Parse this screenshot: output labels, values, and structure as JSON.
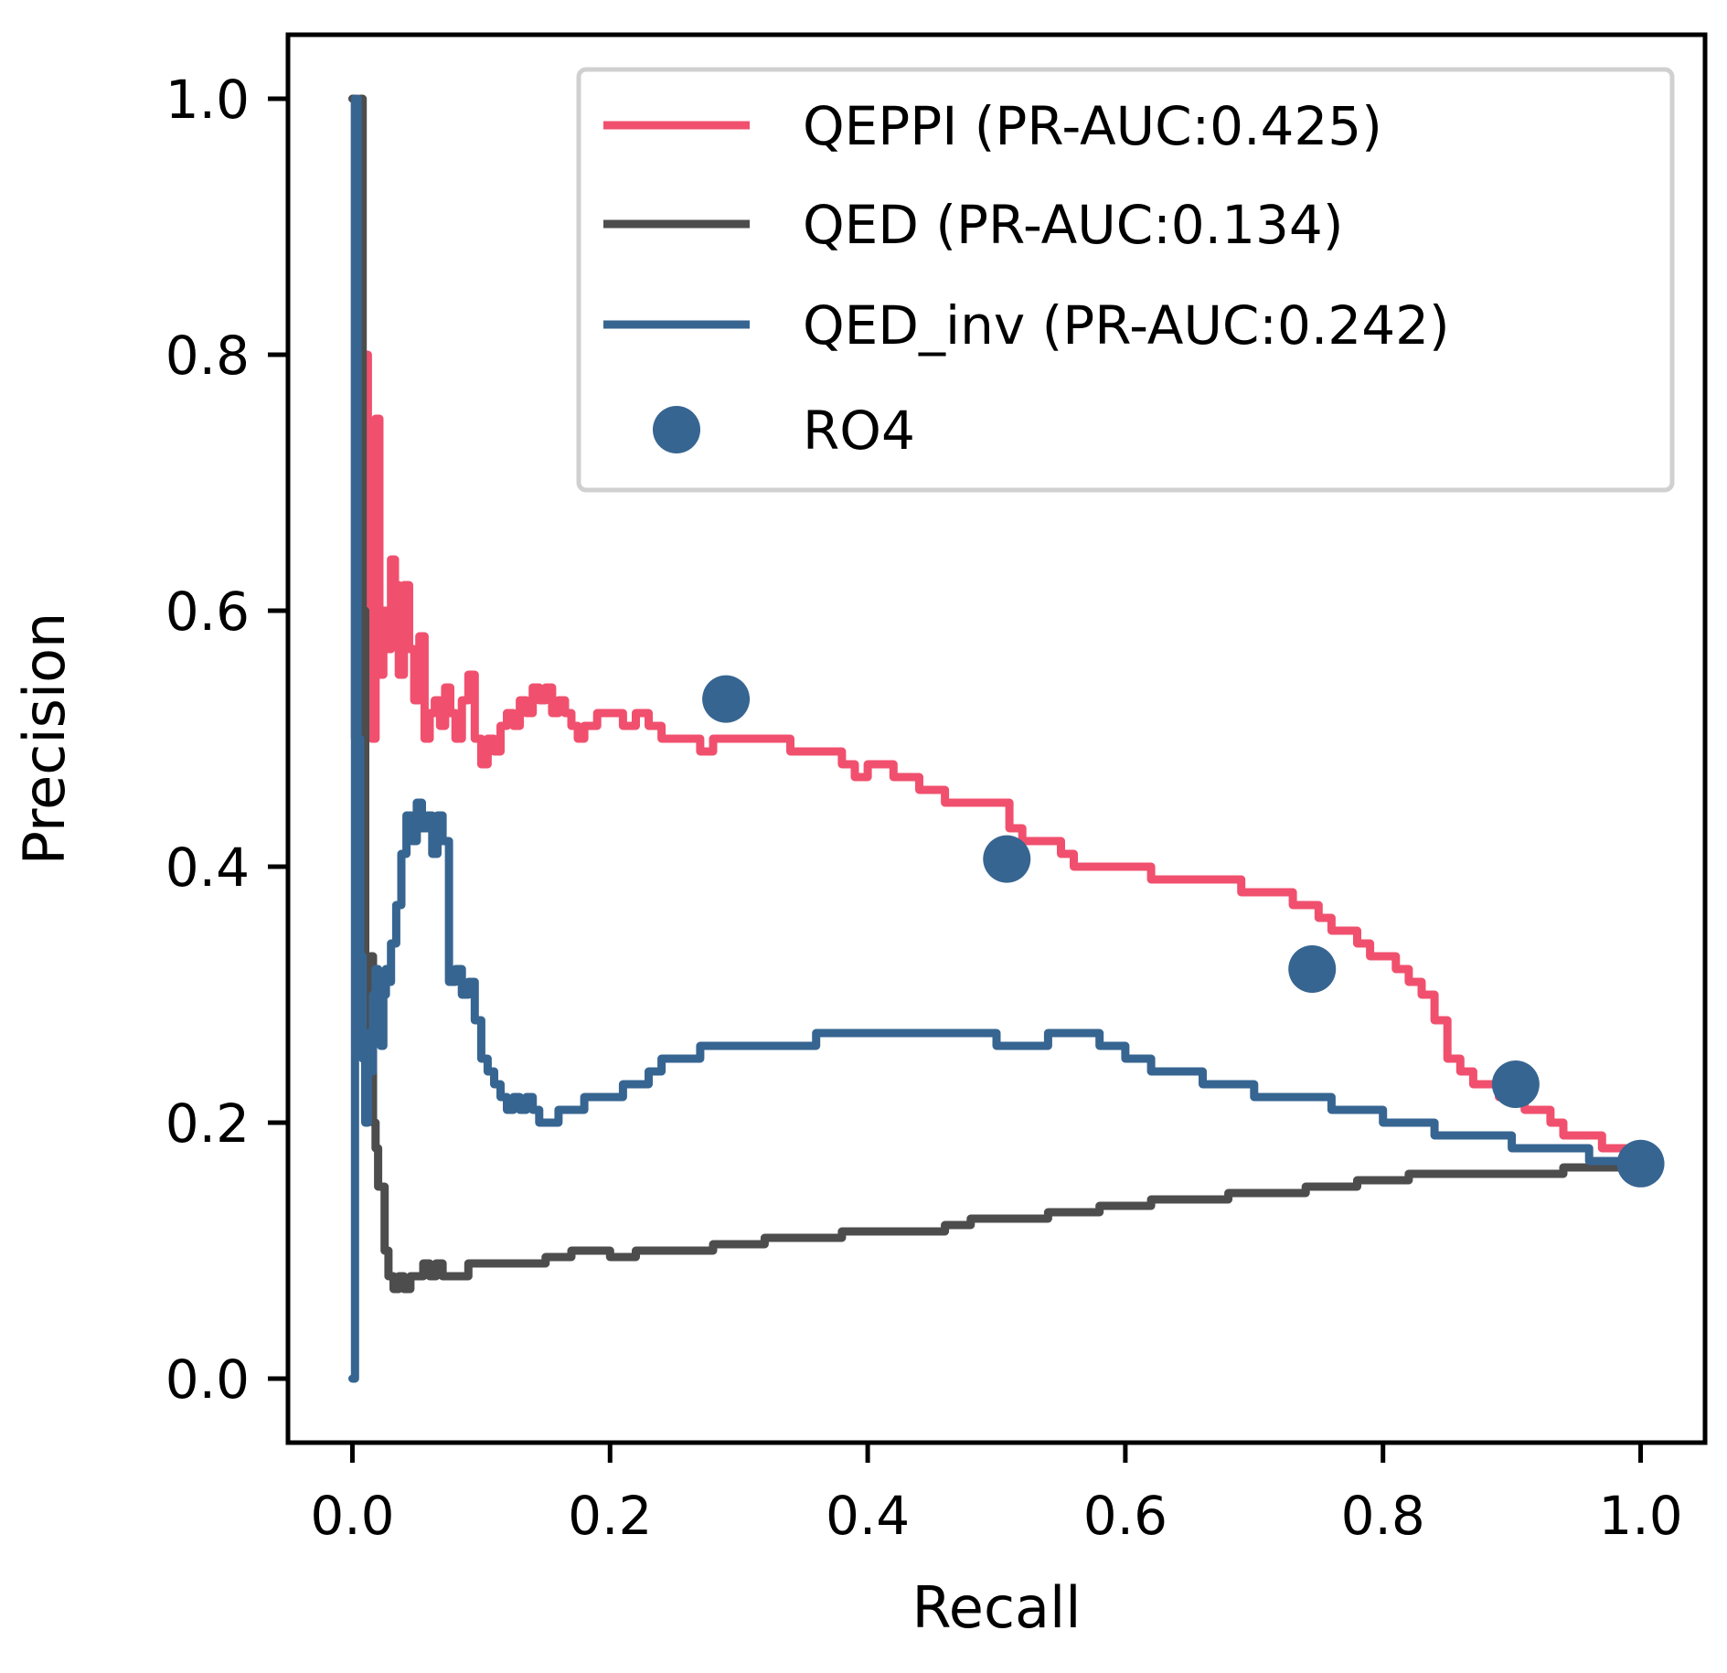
{
  "chart_data": {
    "type": "line",
    "title": "",
    "xlabel": "Recall",
    "ylabel": "Precision",
    "xlim": [
      -0.05,
      1.05
    ],
    "ylim": [
      -0.05,
      1.05
    ],
    "xticks": [
      "0.0",
      "0.2",
      "0.4",
      "0.6",
      "0.8",
      "1.0"
    ],
    "yticks": [
      "0.0",
      "0.2",
      "0.4",
      "0.6",
      "0.8",
      "1.0"
    ],
    "legend_position": "top-right",
    "series": [
      {
        "name": "QEPPI (PR-AUC:0.425)",
        "kind": "line",
        "color": "#f0506e",
        "x": [
          0.0,
          0.003,
          0.006,
          0.009,
          0.012,
          0.015,
          0.018,
          0.021,
          0.024,
          0.027,
          0.03,
          0.033,
          0.036,
          0.04,
          0.044,
          0.048,
          0.052,
          0.056,
          0.06,
          0.064,
          0.068,
          0.072,
          0.076,
          0.08,
          0.085,
          0.09,
          0.095,
          0.1,
          0.105,
          0.11,
          0.115,
          0.12,
          0.125,
          0.13,
          0.135,
          0.14,
          0.145,
          0.15,
          0.155,
          0.16,
          0.165,
          0.17,
          0.175,
          0.18,
          0.19,
          0.2,
          0.21,
          0.22,
          0.23,
          0.24,
          0.25,
          0.26,
          0.27,
          0.28,
          0.29,
          0.3,
          0.31,
          0.32,
          0.33,
          0.34,
          0.35,
          0.36,
          0.37,
          0.38,
          0.39,
          0.4,
          0.41,
          0.42,
          0.43,
          0.44,
          0.45,
          0.46,
          0.47,
          0.48,
          0.49,
          0.5,
          0.51,
          0.52,
          0.53,
          0.54,
          0.55,
          0.56,
          0.57,
          0.58,
          0.59,
          0.6,
          0.61,
          0.62,
          0.63,
          0.64,
          0.65,
          0.66,
          0.67,
          0.68,
          0.69,
          0.7,
          0.71,
          0.72,
          0.73,
          0.74,
          0.75,
          0.76,
          0.77,
          0.78,
          0.79,
          0.8,
          0.81,
          0.82,
          0.83,
          0.84,
          0.85,
          0.86,
          0.87,
          0.88,
          0.89,
          0.9,
          0.91,
          0.92,
          0.93,
          0.94,
          0.95,
          0.96,
          0.97,
          0.98,
          0.99,
          1.0
        ],
        "y": [
          1.0,
          0.67,
          0.75,
          0.8,
          0.6,
          0.5,
          0.75,
          0.55,
          0.6,
          0.57,
          0.64,
          0.62,
          0.55,
          0.62,
          0.57,
          0.53,
          0.58,
          0.5,
          0.52,
          0.53,
          0.51,
          0.54,
          0.52,
          0.5,
          0.53,
          0.55,
          0.5,
          0.48,
          0.5,
          0.49,
          0.51,
          0.52,
          0.51,
          0.53,
          0.52,
          0.54,
          0.53,
          0.54,
          0.52,
          0.53,
          0.52,
          0.51,
          0.5,
          0.51,
          0.52,
          0.52,
          0.51,
          0.52,
          0.51,
          0.5,
          0.5,
          0.5,
          0.49,
          0.5,
          0.5,
          0.5,
          0.5,
          0.5,
          0.5,
          0.49,
          0.49,
          0.49,
          0.49,
          0.48,
          0.47,
          0.48,
          0.48,
          0.47,
          0.47,
          0.46,
          0.46,
          0.45,
          0.45,
          0.45,
          0.45,
          0.45,
          0.43,
          0.42,
          0.42,
          0.42,
          0.41,
          0.4,
          0.4,
          0.4,
          0.4,
          0.4,
          0.4,
          0.39,
          0.39,
          0.39,
          0.39,
          0.39,
          0.39,
          0.39,
          0.38,
          0.38,
          0.38,
          0.38,
          0.37,
          0.37,
          0.36,
          0.35,
          0.35,
          0.34,
          0.33,
          0.33,
          0.32,
          0.31,
          0.3,
          0.28,
          0.25,
          0.24,
          0.23,
          0.23,
          0.22,
          0.22,
          0.21,
          0.21,
          0.2,
          0.19,
          0.19,
          0.19,
          0.18,
          0.18,
          0.18,
          0.17
        ]
      },
      {
        "name": "QED (PR-AUC:0.134)",
        "kind": "line",
        "color": "#4d4d4d",
        "x": [
          0.0,
          0.002,
          0.004,
          0.006,
          0.008,
          0.01,
          0.012,
          0.014,
          0.016,
          0.018,
          0.02,
          0.022,
          0.025,
          0.028,
          0.032,
          0.036,
          0.04,
          0.045,
          0.05,
          0.055,
          0.06,
          0.065,
          0.07,
          0.08,
          0.09,
          0.1,
          0.11,
          0.12,
          0.13,
          0.14,
          0.15,
          0.16,
          0.17,
          0.18,
          0.19,
          0.2,
          0.22,
          0.24,
          0.26,
          0.28,
          0.3,
          0.32,
          0.34,
          0.36,
          0.38,
          0.4,
          0.42,
          0.44,
          0.46,
          0.48,
          0.5,
          0.52,
          0.54,
          0.56,
          0.58,
          0.6,
          0.62,
          0.64,
          0.66,
          0.68,
          0.7,
          0.72,
          0.74,
          0.76,
          0.78,
          0.8,
          0.82,
          0.84,
          0.86,
          0.88,
          0.9,
          0.92,
          0.94,
          0.96,
          0.98,
          1.0
        ],
        "y": [
          1.0,
          0.5,
          0.67,
          1.0,
          0.6,
          0.33,
          0.25,
          0.33,
          0.2,
          0.18,
          0.15,
          0.15,
          0.1,
          0.08,
          0.07,
          0.08,
          0.07,
          0.08,
          0.08,
          0.09,
          0.08,
          0.09,
          0.08,
          0.08,
          0.09,
          0.09,
          0.09,
          0.09,
          0.09,
          0.09,
          0.095,
          0.095,
          0.1,
          0.1,
          0.1,
          0.095,
          0.1,
          0.1,
          0.1,
          0.105,
          0.105,
          0.11,
          0.11,
          0.11,
          0.115,
          0.115,
          0.115,
          0.115,
          0.12,
          0.125,
          0.125,
          0.125,
          0.13,
          0.13,
          0.135,
          0.135,
          0.14,
          0.14,
          0.14,
          0.145,
          0.145,
          0.145,
          0.15,
          0.15,
          0.155,
          0.155,
          0.16,
          0.16,
          0.16,
          0.16,
          0.16,
          0.16,
          0.165,
          0.165,
          0.165,
          0.165
        ]
      },
      {
        "name": "QED_inv (PR-AUC:0.242)",
        "kind": "line",
        "color": "#376591",
        "x": [
          0.0,
          0.002,
          0.004,
          0.006,
          0.008,
          0.01,
          0.012,
          0.014,
          0.016,
          0.018,
          0.02,
          0.022,
          0.024,
          0.026,
          0.028,
          0.03,
          0.034,
          0.038,
          0.042,
          0.046,
          0.05,
          0.054,
          0.058,
          0.062,
          0.066,
          0.07,
          0.075,
          0.08,
          0.085,
          0.09,
          0.095,
          0.1,
          0.105,
          0.11,
          0.115,
          0.12,
          0.125,
          0.13,
          0.135,
          0.14,
          0.145,
          0.15,
          0.16,
          0.17,
          0.18,
          0.19,
          0.2,
          0.21,
          0.22,
          0.23,
          0.24,
          0.25,
          0.26,
          0.27,
          0.28,
          0.29,
          0.3,
          0.32,
          0.34,
          0.36,
          0.38,
          0.4,
          0.42,
          0.44,
          0.46,
          0.48,
          0.5,
          0.52,
          0.54,
          0.56,
          0.58,
          0.6,
          0.62,
          0.64,
          0.66,
          0.68,
          0.7,
          0.72,
          0.74,
          0.76,
          0.78,
          0.8,
          0.82,
          0.84,
          0.86,
          0.88,
          0.9,
          0.92,
          0.94,
          0.96,
          0.98,
          1.0
        ],
        "y": [
          0.0,
          1.0,
          0.5,
          0.33,
          0.25,
          0.2,
          0.27,
          0.24,
          0.3,
          0.32,
          0.28,
          0.26,
          0.3,
          0.32,
          0.31,
          0.34,
          0.37,
          0.41,
          0.44,
          0.42,
          0.45,
          0.43,
          0.44,
          0.41,
          0.44,
          0.42,
          0.31,
          0.32,
          0.3,
          0.31,
          0.28,
          0.25,
          0.24,
          0.23,
          0.22,
          0.21,
          0.22,
          0.21,
          0.22,
          0.21,
          0.2,
          0.2,
          0.21,
          0.21,
          0.22,
          0.22,
          0.22,
          0.23,
          0.23,
          0.24,
          0.25,
          0.25,
          0.25,
          0.26,
          0.26,
          0.26,
          0.26,
          0.26,
          0.26,
          0.27,
          0.27,
          0.27,
          0.27,
          0.27,
          0.27,
          0.27,
          0.26,
          0.26,
          0.27,
          0.27,
          0.26,
          0.25,
          0.24,
          0.24,
          0.23,
          0.23,
          0.22,
          0.22,
          0.22,
          0.21,
          0.21,
          0.2,
          0.2,
          0.19,
          0.19,
          0.19,
          0.18,
          0.18,
          0.18,
          0.17,
          0.17,
          0.17
        ]
      },
      {
        "name": "RO4",
        "kind": "scatter",
        "color": "#376591",
        "x": [
          0.29,
          0.508,
          0.745,
          0.903,
          1.0
        ],
        "y": [
          0.531,
          0.406,
          0.32,
          0.23,
          0.168
        ]
      }
    ]
  }
}
